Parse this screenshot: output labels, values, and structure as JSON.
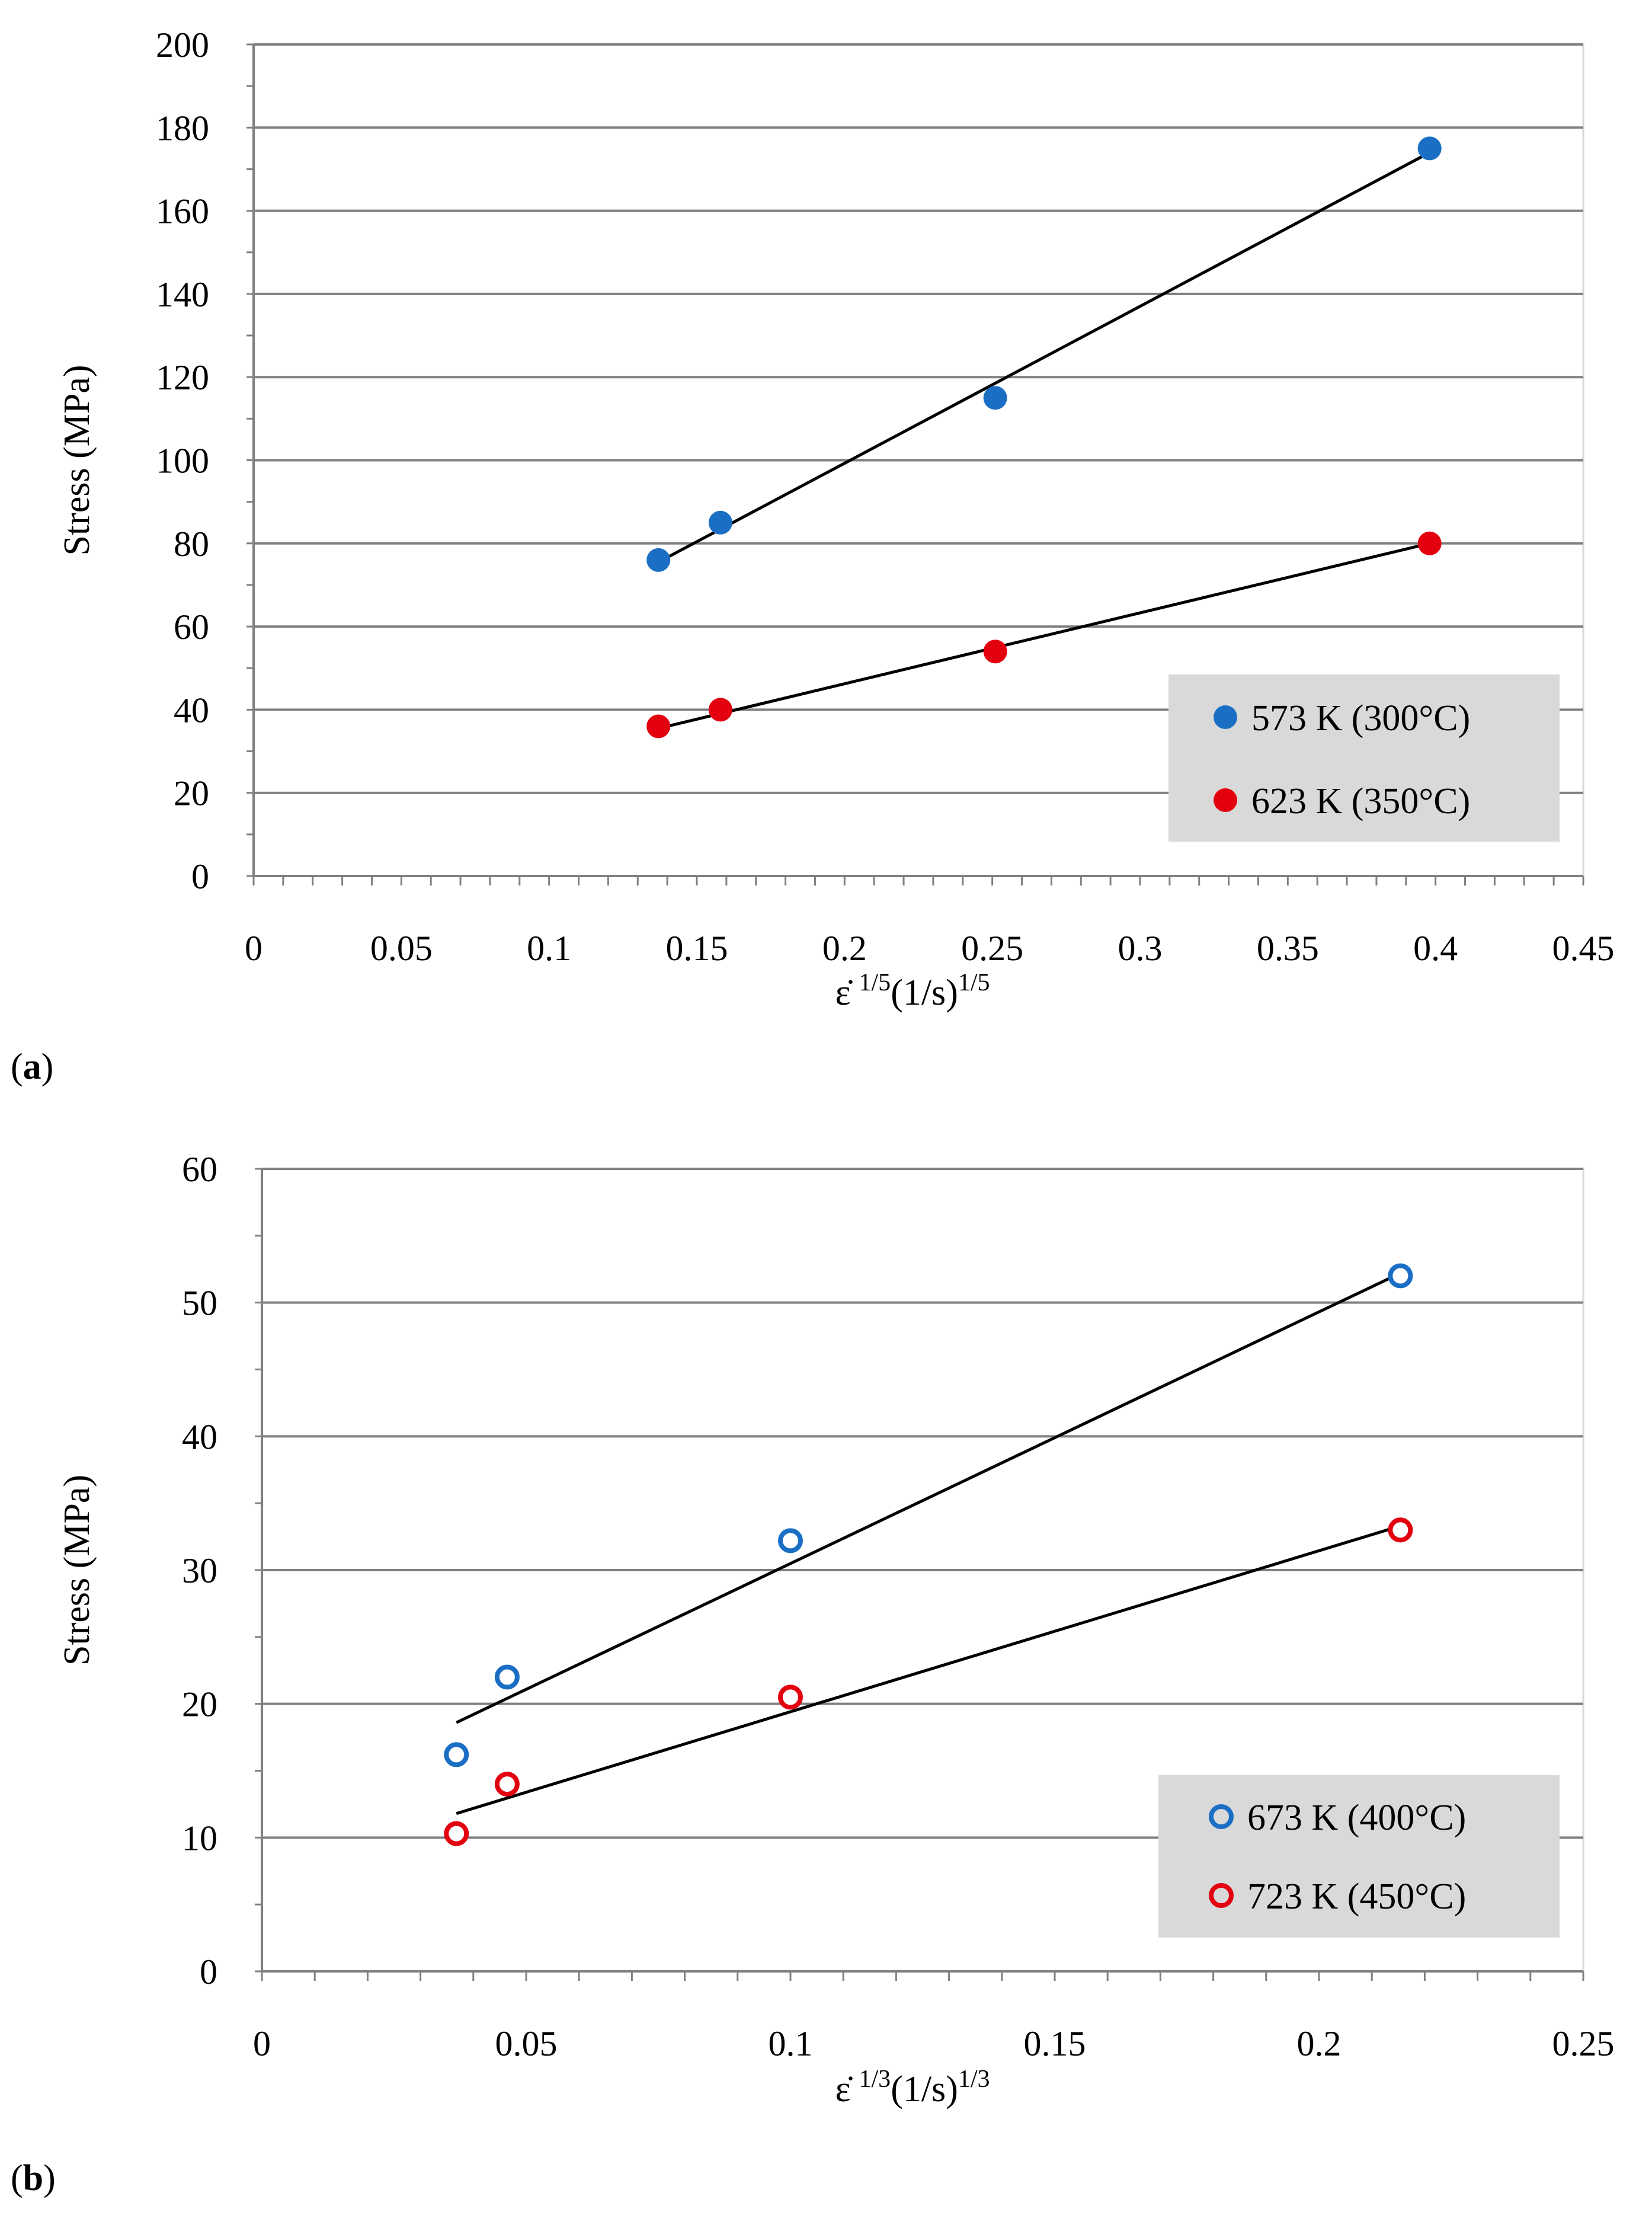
{
  "colors": {
    "blue": "#1a6fc4",
    "red": "#e3000f",
    "grid": "#808080",
    "legend_bg": "#d9d9d9",
    "fit_line": "#000000"
  },
  "chart_data": [
    {
      "type": "scatter",
      "panel_label": "(a)",
      "panel_letter": "a",
      "xlabel_prefix": "ε̇",
      "xlabel_exp": "1/5",
      "xlabel_unit": "(1/s)",
      "xlabel_unit_exp": "1/5",
      "ylabel": "Stress (MPa)",
      "xlim": [
        0,
        0.45
      ],
      "ylim": [
        0,
        200
      ],
      "xticks": [
        0,
        0.05,
        0.1,
        0.15,
        0.2,
        0.25,
        0.3,
        0.35,
        0.4,
        0.45
      ],
      "xtick_labels": [
        "0",
        "0.05",
        "0.1",
        "0.15",
        "0.2",
        "0.25",
        "0.3",
        "0.35",
        "0.4",
        "0.45"
      ],
      "yticks": [
        0,
        20,
        40,
        60,
        80,
        100,
        120,
        140,
        160,
        180,
        200
      ],
      "ytick_labels": [
        "0",
        "20",
        "40",
        "60",
        "80",
        "100",
        "120",
        "140",
        "160",
        "180",
        "200"
      ],
      "minor_x_step": 0.01,
      "legend_position": "bottom-right",
      "marker": "filled",
      "series": [
        {
          "name": "573 K (300°C)",
          "color": "#1a6fc4",
          "x": [
            0.137,
            0.158,
            0.251,
            0.398
          ],
          "y": [
            76,
            85,
            115,
            175
          ],
          "fit": {
            "x": [
              0.137,
              0.398
            ],
            "y": [
              75.5,
              174
            ]
          }
        },
        {
          "name": "623 K (350°C)",
          "color": "#e3000f",
          "x": [
            0.137,
            0.158,
            0.251,
            0.398
          ],
          "y": [
            36,
            40,
            54,
            80
          ],
          "fit": {
            "x": [
              0.137,
              0.398
            ],
            "y": [
              35.5,
              80
            ]
          }
        }
      ]
    },
    {
      "type": "scatter",
      "panel_label": "(b)",
      "panel_letter": "b",
      "xlabel_prefix": "ε̇",
      "xlabel_exp": "1/3",
      "xlabel_unit": "(1/s)",
      "xlabel_unit_exp": "1/3",
      "ylabel": "Stress (MPa)",
      "xlim": [
        0,
        0.25
      ],
      "ylim": [
        0,
        60
      ],
      "xticks": [
        0,
        0.05,
        0.1,
        0.15,
        0.2,
        0.25
      ],
      "xtick_labels": [
        "0",
        "0.05",
        "0.1",
        "0.15",
        "0.2",
        "0.25"
      ],
      "yticks": [
        0,
        10,
        20,
        30,
        40,
        50,
        60
      ],
      "ytick_labels": [
        "0",
        "10",
        "20",
        "30",
        "40",
        "50",
        "60"
      ],
      "minor_x_step": 0.01,
      "legend_position": "bottom-right",
      "marker": "open",
      "series": [
        {
          "name": "673 K (400°C)",
          "color": "#1a6fc4",
          "x": [
            0.0368,
            0.0464,
            0.1,
            0.2154
          ],
          "y": [
            16.2,
            22,
            32.2,
            52
          ],
          "fit": {
            "x": [
              0.0368,
              0.2154
            ],
            "y": [
              18.6,
              52.2
            ]
          }
        },
        {
          "name": "723 K (450°C)",
          "color": "#e3000f",
          "x": [
            0.0368,
            0.0464,
            0.1,
            0.2154
          ],
          "y": [
            10.3,
            14,
            20.5,
            33
          ],
          "fit": {
            "x": [
              0.0368,
              0.2154
            ],
            "y": [
              11.8,
              33.3
            ]
          }
        }
      ]
    }
  ]
}
